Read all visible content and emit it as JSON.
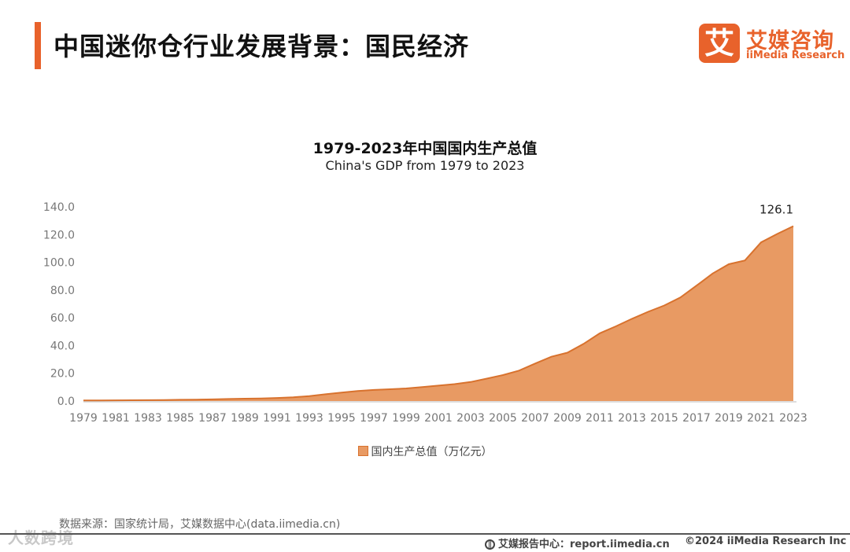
{
  "header": {
    "title": "中国迷你仓行业发展背景：国民经济",
    "logo": {
      "mark": "艾",
      "name_cn": "艾媒咨询",
      "name_en": "iiMedia Research"
    },
    "accent_color": "#e8622b"
  },
  "chart_data": {
    "type": "area",
    "title": "1979-2023年中国国内生产总值",
    "subtitle": "China's GDP from 1979 to 2023",
    "x": [
      1979,
      1980,
      1981,
      1982,
      1983,
      1984,
      1985,
      1986,
      1987,
      1988,
      1989,
      1990,
      1991,
      1992,
      1993,
      1994,
      1995,
      1996,
      1997,
      1998,
      1999,
      2000,
      2001,
      2002,
      2003,
      2004,
      2005,
      2006,
      2007,
      2008,
      2009,
      2010,
      2011,
      2012,
      2013,
      2014,
      2015,
      2016,
      2017,
      2018,
      2019,
      2020,
      2021,
      2022,
      2023
    ],
    "series": [
      {
        "name": "国内生产总值（万亿元）",
        "values": [
          0.41,
          0.46,
          0.49,
          0.54,
          0.6,
          0.73,
          0.92,
          1.03,
          1.21,
          1.5,
          1.72,
          1.89,
          2.2,
          2.72,
          3.57,
          4.86,
          6.13,
          7.18,
          7.97,
          8.52,
          9.06,
          10.03,
          11.09,
          12.17,
          13.74,
          16.18,
          18.73,
          21.94,
          27.01,
          31.92,
          34.85,
          41.21,
          48.79,
          53.86,
          59.3,
          64.36,
          68.89,
          74.64,
          83.2,
          91.93,
          98.65,
          101.36,
          114.37,
          120.47,
          126.06
        ]
      }
    ],
    "xticks": [
      "1979",
      "1981",
      "1983",
      "1985",
      "1987",
      "1989",
      "1991",
      "1993",
      "1995",
      "1997",
      "1999",
      "2001",
      "2003",
      "2005",
      "2007",
      "2009",
      "2011",
      "2013",
      "2015",
      "2017",
      "2019",
      "2021",
      "2023"
    ],
    "yticks": [
      "0.0",
      "20.0",
      "40.0",
      "60.0",
      "80.0",
      "100.0",
      "120.0",
      "140.0"
    ],
    "ylim": [
      0,
      140
    ],
    "data_label": "126.1",
    "legend": "国内生产总值（万亿元）",
    "legend_position": "bottom",
    "fill_color": "#e89a63",
    "line_color": "#d8722e",
    "grid": false
  },
  "footer": {
    "source": "数据来源：国家统计局，艾媒数据中心(data.iimedia.cn)",
    "report_center": "艾媒报告中心：report.iimedia.cn",
    "copyright": "©2024  iiMedia Research  Inc",
    "watermark": "人数跨境"
  }
}
